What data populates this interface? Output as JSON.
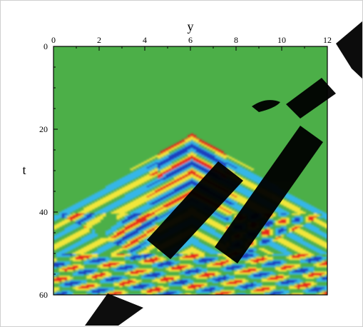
{
  "chart_data": {
    "type": "heatmap",
    "title": "",
    "xlabel": "y",
    "ylabel": "t",
    "xlim": [
      0,
      12
    ],
    "ylim": [
      0,
      60
    ],
    "x_ticks": [
      0,
      2,
      4,
      6,
      8,
      10,
      12
    ],
    "y_ticks": [
      0,
      20,
      40,
      60
    ],
    "x_tick_labels": [
      "0",
      "2",
      "4",
      "6",
      "8",
      "10",
      "12"
    ],
    "y_tick_labels": [
      "0",
      "20",
      "40",
      "60"
    ],
    "y_axis_inverted": true,
    "x_axis_position": "top",
    "grid": false,
    "legend": "none",
    "colormap": [
      "#1f3fbf",
      "#35b6e8",
      "#4caf48",
      "#f2e63a",
      "#e8271f"
    ],
    "background_value_color": "#4caf48",
    "features": {
      "wavefront_apex": {
        "y": 6,
        "t": 21
      },
      "wavefront_edges": [
        {
          "y": 0,
          "t": 40
        },
        {
          "y": 12,
          "t": 40
        }
      ],
      "reflection_band_t": [
        50,
        60
      ]
    },
    "watermark_color": "#000000"
  }
}
